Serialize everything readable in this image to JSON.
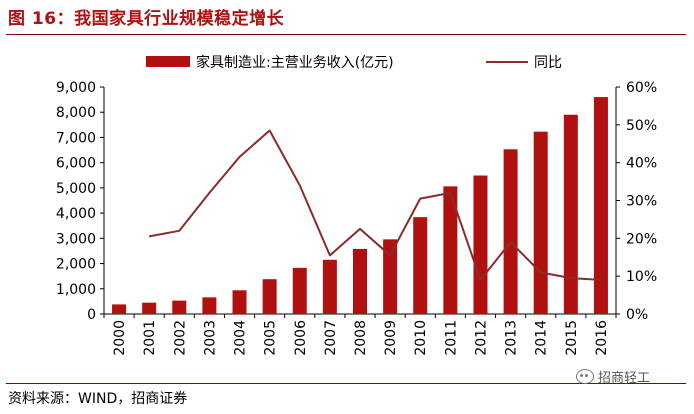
{
  "title": "图 16：我国家具行业规模稳定增长",
  "source": "资料来源：WIND，招商证券",
  "watermark": "招商轻工",
  "chart_data": {
    "type": "bar+line",
    "categories": [
      "2000",
      "2001",
      "2002",
      "2003",
      "2004",
      "2005",
      "2006",
      "2007",
      "2008",
      "2009",
      "2010",
      "2011",
      "2012",
      "2013",
      "2014",
      "2015",
      "2016"
    ],
    "series": [
      {
        "name": "家具制造业:主营业务收入(亿元)",
        "type": "bar",
        "axis": "left",
        "color": "#b01010",
        "values": [
          380,
          450,
          530,
          660,
          940,
          1380,
          1830,
          2150,
          2580,
          2960,
          3840,
          5060,
          5490,
          6530,
          7230,
          7900,
          8600
        ]
      },
      {
        "name": "同比",
        "type": "line",
        "axis": "right",
        "color": "#8b2b2b",
        "values": [
          null,
          20.5,
          22,
          32,
          41.5,
          48.5,
          34,
          15.5,
          22.5,
          15.5,
          30.5,
          32,
          9,
          19,
          11,
          9.5,
          9
        ]
      }
    ],
    "y_left": {
      "min": 0,
      "max": 9000,
      "ticks": [
        "0",
        "1,000",
        "2,000",
        "3,000",
        "4,000",
        "5,000",
        "6,000",
        "7,000",
        "8,000",
        "9,000"
      ]
    },
    "y_right": {
      "min": 0,
      "max": 60,
      "ticks": [
        "0%",
        "10%",
        "20%",
        "30%",
        "40%",
        "50%",
        "60%"
      ]
    },
    "grid": false,
    "legend_position": "top"
  }
}
